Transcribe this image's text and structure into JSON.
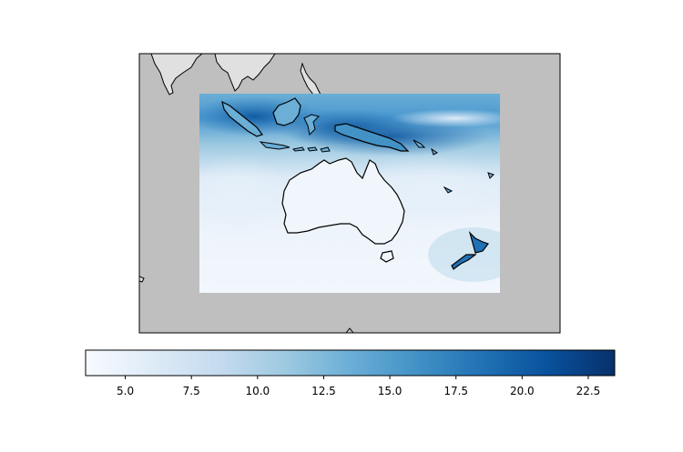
{
  "map": {
    "background_color": "#bfbfbf",
    "land_outside_color": "#e0e0e0",
    "data_region": {
      "lon_range_deg": "approx. 90E to 180E",
      "lat_range_deg": "approx. 10N to 50S"
    },
    "colormap": "Blues"
  },
  "colorbar": {
    "orientation": "horizontal",
    "vmin": 3.5,
    "vmax": 23.5,
    "ticks": [
      "5.0",
      "7.5",
      "10.0",
      "12.5",
      "15.0",
      "17.5",
      "20.0",
      "22.5"
    ],
    "gradient_colors": [
      "#f7fbff",
      "#deebf7",
      "#c6dbef",
      "#9ecae1",
      "#6baed6",
      "#4292c6",
      "#2171b5",
      "#08519c",
      "#08306b"
    ]
  }
}
